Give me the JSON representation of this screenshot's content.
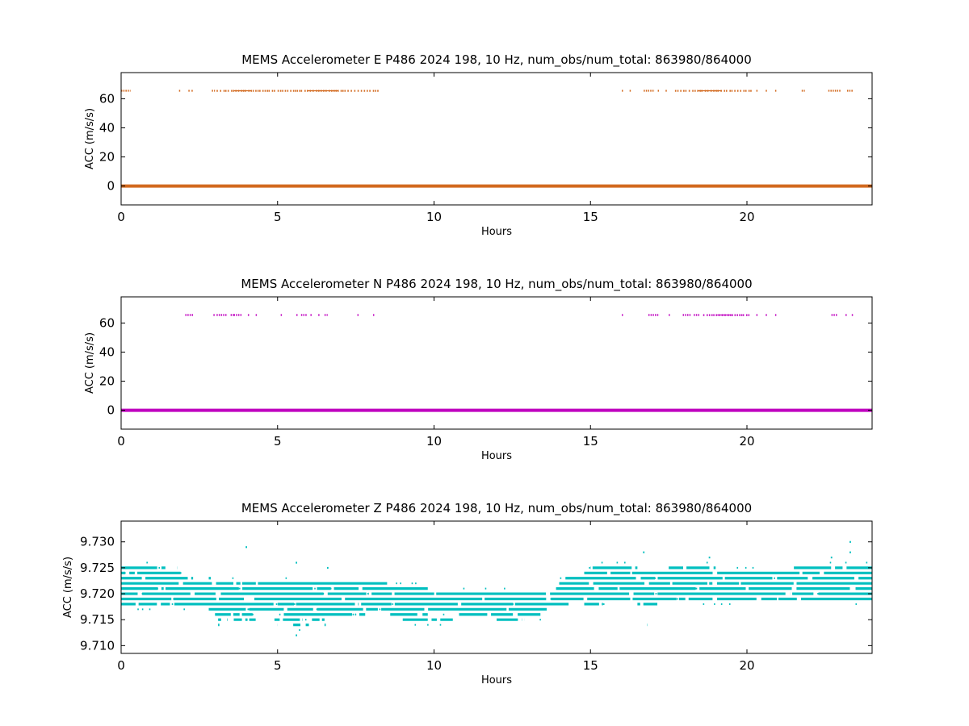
{
  "chart_data": [
    {
      "type": "scatter",
      "title": "MEMS Accelerometer E P486 2024 198, 10 Hz, num_obs/num_total: 863980/864000",
      "xlabel": "Hours",
      "ylabel": "ACC (m/s/s)",
      "xlim": [
        0,
        24
      ],
      "ylim": [
        -13,
        78
      ],
      "xticks": [
        0,
        5,
        10,
        15,
        20
      ],
      "yticks": [
        0,
        20,
        40,
        60
      ],
      "grid": false,
      "legend": "none",
      "color": "#d2691e",
      "series": [
        {
          "baseline_value": 0,
          "spike_value": 65.5,
          "spike_segments": [
            [
              0,
              0.3
            ],
            [
              1.85,
              1.9
            ],
            [
              2.15,
              2.2
            ],
            [
              2.25,
              2.3
            ],
            [
              2.9,
              3.0
            ],
            [
              3.05,
              4.9
            ],
            [
              5.0,
              8.2
            ],
            [
              16.0,
              16.05
            ],
            [
              16.25,
              16.3
            ],
            [
              16.7,
              17.05
            ],
            [
              17.15,
              17.2
            ],
            [
              17.4,
              17.45
            ],
            [
              17.7,
              20.2
            ],
            [
              20.3,
              20.35
            ],
            [
              20.6,
              20.65
            ],
            [
              20.9,
              20.95
            ],
            [
              21.75,
              21.85
            ],
            [
              22.6,
              23.0
            ],
            [
              23.2,
              23.4
            ]
          ]
        }
      ]
    },
    {
      "type": "scatter",
      "title": "MEMS Accelerometer N P486 2024 198, 10 Hz, num_obs/num_total: 863980/864000",
      "xlabel": "Hours",
      "ylabel": "ACC (m/s/s)",
      "xlim": [
        0,
        24
      ],
      "ylim": [
        -13,
        78
      ],
      "xticks": [
        0,
        5,
        10,
        15,
        20
      ],
      "yticks": [
        0,
        20,
        40,
        60
      ],
      "grid": false,
      "legend": "none",
      "color": "#bf00bf",
      "series": [
        {
          "baseline_value": 0,
          "spike_value": 65.5,
          "spike_segments": [
            [
              2.05,
              2.3
            ],
            [
              2.95,
              3.0
            ],
            [
              3.05,
              3.4
            ],
            [
              3.5,
              3.6
            ],
            [
              3.6,
              3.85
            ],
            [
              4.05,
              4.1
            ],
            [
              4.3,
              4.35
            ],
            [
              5.1,
              5.15
            ],
            [
              5.6,
              5.65
            ],
            [
              5.75,
              5.95
            ],
            [
              6.05,
              6.1
            ],
            [
              6.3,
              6.35
            ],
            [
              6.5,
              6.6
            ],
            [
              7.55,
              7.6
            ],
            [
              8.05,
              8.1
            ],
            [
              16.0,
              16.05
            ],
            [
              16.85,
              17.2
            ],
            [
              17.5,
              17.55
            ],
            [
              17.95,
              18.2
            ],
            [
              18.3,
              18.5
            ],
            [
              18.6,
              20.1
            ],
            [
              20.3,
              20.35
            ],
            [
              20.6,
              20.65
            ],
            [
              20.9,
              20.95
            ],
            [
              22.7,
              22.9
            ],
            [
              23.15,
              23.2
            ],
            [
              23.35,
              23.4
            ]
          ]
        }
      ]
    },
    {
      "type": "scatter",
      "title": "MEMS Accelerometer Z P486 2024 198, 10 Hz, num_obs/num_total: 863980/864000",
      "xlabel": "Hours",
      "ylabel": "ACC (m/s/s)",
      "xlim": [
        0,
        24
      ],
      "ylim": [
        9.7085,
        9.734
      ],
      "xticks": [
        0,
        5,
        10,
        15,
        20
      ],
      "yticks": [
        9.71,
        9.715,
        9.72,
        9.725,
        9.73
      ],
      "ytick_labels": [
        "9.710",
        "9.715",
        "9.720",
        "9.725",
        "9.730"
      ],
      "grid": false,
      "legend": "none",
      "color": "#00bfbf",
      "series": [
        {
          "level_step": 0.001,
          "levels": [
            {
              "y": 9.725,
              "segments": [
                [
                  0,
                  1.5
                ],
                [
                  1.8,
                  1.9
                ],
                [
                  15.0,
                  16.5
                ],
                [
                  17.5,
                  19.0
                ],
                [
                  21.5,
                  24.0
                ]
              ]
            },
            {
              "y": 9.724,
              "segments": [
                [
                  0,
                  1.9
                ],
                [
                  14.8,
                  24.0
                ]
              ]
            },
            {
              "y": 9.723,
              "segments": [
                [
                  0,
                  2.3
                ],
                [
                  2.8,
                  3.0
                ],
                [
                  14.2,
                  24.0
                ]
              ]
            },
            {
              "y": 9.722,
              "segments": [
                [
                  0,
                  8.5
                ],
                [
                  14.0,
                  24.0
                ]
              ]
            },
            {
              "y": 9.721,
              "segments": [
                [
                  0,
                  9.8
                ],
                [
                  13.9,
                  24.0
                ]
              ]
            },
            {
              "y": 9.72,
              "segments": [
                [
                  0,
                  24.0
                ]
              ]
            },
            {
              "y": 9.719,
              "segments": [
                [
                  0,
                  24.0
                ]
              ]
            },
            {
              "y": 9.718,
              "segments": [
                [
                  0,
                  14.3
                ],
                [
                  14.8,
                  15.4
                ],
                [
                  16.5,
                  17.2
                ]
              ]
            },
            {
              "y": 9.717,
              "segments": [
                [
                  2.8,
                  13.6
                ]
              ]
            },
            {
              "y": 9.716,
              "segments": [
                [
                  3.0,
                  4.2
                ],
                [
                  5.2,
                  7.8
                ],
                [
                  8.6,
                  9.8
                ],
                [
                  10.8,
                  13.4
                ]
              ]
            },
            {
              "y": 9.715,
              "segments": [
                [
                  3.1,
                  3.4
                ],
                [
                  3.6,
                  4.3
                ],
                [
                  4.9,
                  5.8
                ],
                [
                  6.1,
                  6.5
                ],
                [
                  9.0,
                  10.6
                ],
                [
                  12.0,
                  12.9
                ]
              ]
            },
            {
              "y": 9.714,
              "segments": [
                [
                  3.1,
                  3.2
                ],
                [
                  5.0,
                  5.2
                ],
                [
                  5.5,
                  6.0
                ],
                [
                  6.5,
                  6.6
                ],
                [
                  16.8,
                  16.85
                ]
              ]
            }
          ],
          "outliers": [
            {
              "x": 4.0,
              "y": 9.729
            },
            {
              "x": 5.6,
              "y": 9.726
            },
            {
              "x": 5.6,
              "y": 9.712
            },
            {
              "x": 6.6,
              "y": 9.725
            },
            {
              "x": 16.7,
              "y": 9.728
            },
            {
              "x": 18.8,
              "y": 9.727
            },
            {
              "x": 22.7,
              "y": 9.727
            },
            {
              "x": 23.3,
              "y": 9.73
            },
            {
              "x": 23.3,
              "y": 9.728
            }
          ]
        }
      ]
    }
  ]
}
